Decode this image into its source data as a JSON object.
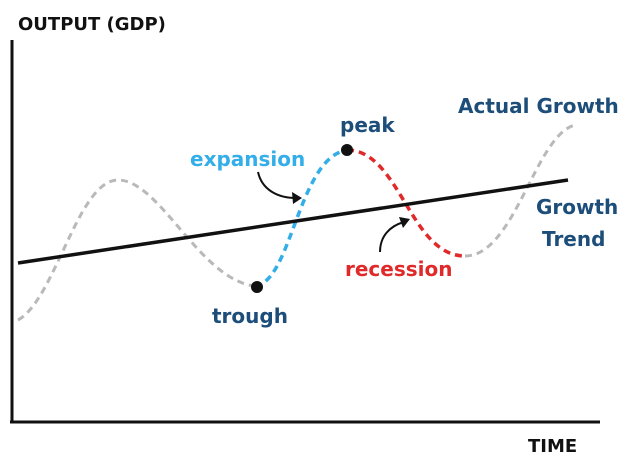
{
  "labels": {
    "y_axis": "OUTPUT (GDP)",
    "x_axis": "TIME",
    "actual_growth": "Actual Growth",
    "growth_trend_line1": "Growth",
    "growth_trend_line2": "Trend",
    "peak": "peak",
    "trough": "trough",
    "expansion": "expansion",
    "recession": "recession"
  },
  "colors": {
    "axis": "#111111",
    "axis_label": "#111111",
    "series_label": "#1d4e7a",
    "cycle_dashed": "#b9b9b9",
    "expansion": "#33aee8",
    "recession": "#e02a2a",
    "trend_line": "#111111",
    "marker": "#111111",
    "arrow": "#111111"
  }
}
